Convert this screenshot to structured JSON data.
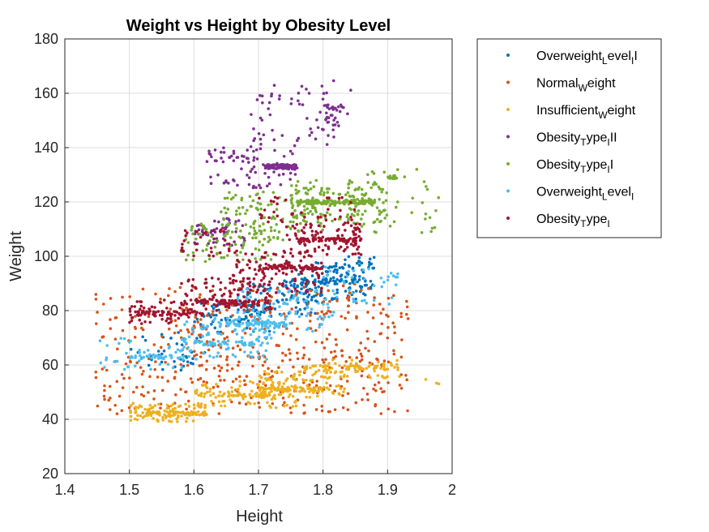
{
  "chart_data": {
    "type": "scatter",
    "title": "Weight vs Height by Obesity Level",
    "xlabel": "Height",
    "ylabel": "Weight",
    "xlim": [
      1.4,
      2.0
    ],
    "ylim": [
      20,
      180
    ],
    "xticks": [
      "1.4",
      "1.5",
      "1.6",
      "1.7",
      "1.8",
      "1.9",
      "2"
    ],
    "yticks": [
      "20",
      "40",
      "60",
      "80",
      "100",
      "120",
      "140",
      "160",
      "180"
    ],
    "grid": true,
    "legend_position": "outside-right-top",
    "series": [
      {
        "name": "Overweight_Level_II",
        "legend": {
          "parts": [
            [
              "Overweight",
              ""
            ],
            [
              "L",
              "sub"
            ],
            [
              "evel",
              ""
            ],
            [
              "I",
              "sub"
            ],
            [
              "I",
              ""
            ]
          ]
        },
        "color": "#0072BD",
        "clusters": [
          {
            "x": [
              1.5,
              1.62
            ],
            "y": [
              58,
              72
            ],
            "n": 40
          },
          {
            "x": [
              1.6,
              1.72
            ],
            "y": [
              72,
              84
            ],
            "n": 70
          },
          {
            "x": [
              1.68,
              1.8
            ],
            "y": [
              78,
              90
            ],
            "n": 90
          },
          {
            "x": [
              1.75,
              1.87
            ],
            "y": [
              84,
              98
            ],
            "n": 90
          },
          {
            "x": [
              1.8,
              1.88
            ],
            "y": [
              88,
              100
            ],
            "n": 40
          }
        ],
        "rows": [
          {
            "x": [
              1.74,
              1.86
            ],
            "y": 91,
            "n": 40
          }
        ]
      },
      {
        "name": "Normal_Weight",
        "legend": {
          "parts": [
            [
              "Normal",
              ""
            ],
            [
              "W",
              "sub"
            ],
            [
              "eight",
              ""
            ]
          ]
        },
        "color": "#D95319",
        "columns": {
          "x": [
            1.45,
            1.93
          ],
          "y": [
            42,
            90
          ],
          "step": 0.01,
          "n_per": 7
        },
        "clusters": [
          {
            "x": [
              1.55,
              1.9
            ],
            "y": [
              50,
              85
            ],
            "n": 140
          },
          {
            "x": [
              1.45,
              1.55
            ],
            "y": [
              48,
              62
            ],
            "n": 10
          }
        ]
      },
      {
        "name": "Insufficient_Weight",
        "legend": {
          "parts": [
            [
              "Insufficient",
              ""
            ],
            [
              "W",
              "sub"
            ],
            [
              "eight",
              ""
            ]
          ]
        },
        "color": "#EDB120",
        "clusters": [
          {
            "x": [
              1.5,
              1.62
            ],
            "y": [
              39,
              46
            ],
            "n": 90
          },
          {
            "x": [
              1.6,
              1.76
            ],
            "y": [
              44,
              54
            ],
            "n": 80
          },
          {
            "x": [
              1.7,
              1.84
            ],
            "y": [
              48,
              58
            ],
            "n": 90
          },
          {
            "x": [
              1.8,
              1.92
            ],
            "y": [
              55,
              62
            ],
            "n": 40
          },
          {
            "x": [
              1.95,
              1.98
            ],
            "y": [
              53,
              60
            ],
            "n": 3
          }
        ],
        "rows": [
          {
            "x": [
              1.52,
              1.62
            ],
            "y": 42,
            "n": 60
          },
          {
            "x": [
              1.6,
              1.72
            ],
            "y": 49,
            "n": 45
          },
          {
            "x": [
              1.7,
              1.8
            ],
            "y": 51,
            "n": 70
          },
          {
            "x": [
              1.77,
              1.9
            ],
            "y": 59,
            "n": 50
          }
        ]
      },
      {
        "name": "Obesity_Type_III",
        "legend": {
          "parts": [
            [
              "Obesity",
              ""
            ],
            [
              "T",
              "sub"
            ],
            [
              "ype",
              ""
            ],
            [
              "I",
              "sub"
            ],
            [
              "II",
              ""
            ]
          ]
        },
        "color": "#7E2F8E",
        "clusters": [
          {
            "x": [
              1.6,
              1.68
            ],
            "y": [
              104,
              114
            ],
            "n": 60
          },
          {
            "x": [
              1.62,
              1.76
            ],
            "y": [
              125,
              140
            ],
            "n": 80
          },
          {
            "x": [
              1.68,
              1.82
            ],
            "y": [
              140,
              160
            ],
            "n": 50
          },
          {
            "x": [
              1.8,
              1.84
            ],
            "y": [
              148,
              156
            ],
            "n": 30
          },
          {
            "x": [
              1.72,
              1.85
            ],
            "y": [
              158,
              166
            ],
            "n": 10
          }
        ],
        "rows": [
          {
            "x": [
              1.71,
              1.76
            ],
            "y": 133,
            "n": 90
          }
        ]
      },
      {
        "name": "Obesity_Type_II",
        "legend": {
          "parts": [
            [
              "Obesity",
              ""
            ],
            [
              "T",
              "sub"
            ],
            [
              "ype",
              ""
            ],
            [
              "I",
              "sub"
            ],
            [
              "I",
              ""
            ]
          ]
        },
        "color": "#77AC30",
        "clusters": [
          {
            "x": [
              1.58,
              1.72
            ],
            "y": [
              98,
              112
            ],
            "n": 80
          },
          {
            "x": [
              1.64,
              1.8
            ],
            "y": [
              106,
              124
            ],
            "n": 100
          },
          {
            "x": [
              1.75,
              1.9
            ],
            "y": [
              112,
              128
            ],
            "n": 140
          },
          {
            "x": [
              1.85,
              1.98
            ],
            "y": [
              108,
              132
            ],
            "n": 40
          }
        ],
        "rows": [
          {
            "x": [
              1.76,
              1.88
            ],
            "y": 120,
            "n": 120
          },
          {
            "x": [
              1.9,
              1.92
            ],
            "y": 129,
            "n": 15
          }
        ]
      },
      {
        "name": "Overweight_Level_I",
        "legend": {
          "parts": [
            [
              "Overweight",
              ""
            ],
            [
              "L",
              "sub"
            ],
            [
              "evel",
              ""
            ],
            [
              "I",
              "sub"
            ]
          ]
        },
        "color": "#4DBEEE",
        "clusters": [
          {
            "x": [
              1.45,
              1.6
            ],
            "y": [
              58,
              70
            ],
            "n": 40
          },
          {
            "x": [
              1.58,
              1.72
            ],
            "y": [
              62,
              78
            ],
            "n": 90
          },
          {
            "x": [
              1.66,
              1.82
            ],
            "y": [
              72,
              88
            ],
            "n": 100
          },
          {
            "x": [
              1.8,
              1.92
            ],
            "y": [
              82,
              96
            ],
            "n": 40
          }
        ],
        "rows": [
          {
            "x": [
              1.5,
              1.58
            ],
            "y": 63,
            "n": 30
          },
          {
            "x": [
              1.6,
              1.7
            ],
            "y": 68,
            "n": 40
          },
          {
            "x": [
              1.65,
              1.75
            ],
            "y": 75,
            "n": 60
          }
        ]
      },
      {
        "name": "Obesity_Type_I",
        "legend": {
          "parts": [
            [
              "Obesity",
              ""
            ],
            [
              "T",
              "sub"
            ],
            [
              "ype",
              ""
            ],
            [
              "I",
              "sub"
            ]
          ]
        },
        "color": "#A2142F",
        "clusters": [
          {
            "x": [
              1.5,
              1.6
            ],
            "y": [
              75,
              84
            ],
            "n": 50
          },
          {
            "x": [
              1.58,
              1.72
            ],
            "y": [
              80,
              92
            ],
            "n": 90
          },
          {
            "x": [
              1.66,
              1.8
            ],
            "y": [
              86,
              102
            ],
            "n": 110
          },
          {
            "x": [
              1.74,
              1.86
            ],
            "y": [
              100,
              112
            ],
            "n": 100
          },
          {
            "x": [
              1.58,
              1.66
            ],
            "y": [
              100,
              110
            ],
            "n": 30
          },
          {
            "x": [
              1.7,
              1.85
            ],
            "y": [
              112,
              122
            ],
            "n": 40
          }
        ],
        "rows": [
          {
            "x": [
              1.5,
              1.62
            ],
            "y": 79,
            "n": 50
          },
          {
            "x": [
              1.6,
              1.7
            ],
            "y": 83,
            "n": 50
          },
          {
            "x": [
              1.7,
              1.8
            ],
            "y": 96,
            "n": 60
          },
          {
            "x": [
              1.76,
              1.86
            ],
            "y": 106,
            "n": 60
          }
        ]
      }
    ]
  }
}
